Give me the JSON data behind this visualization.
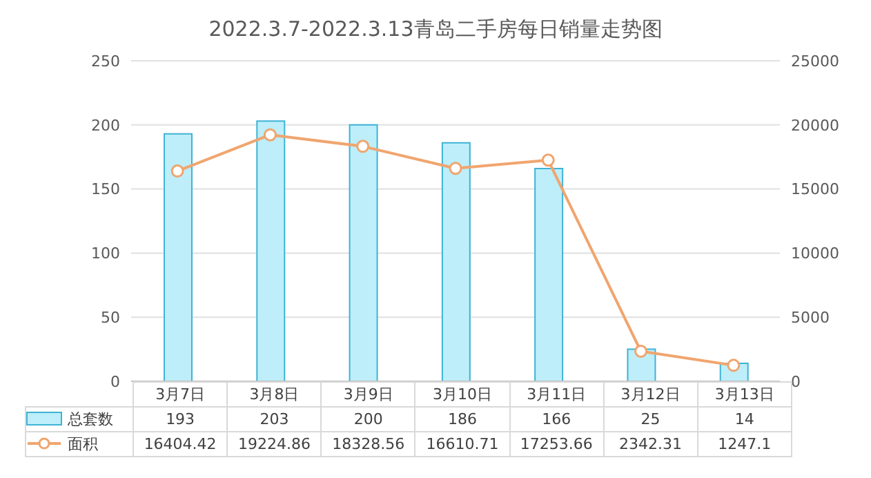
{
  "chart_data": {
    "type": "bar",
    "title": "2022.3.7-2022.3.13青岛二手房每日销量走势图",
    "categories": [
      "3月7日",
      "3月8日",
      "3月9日",
      "3月10日",
      "3月11日",
      "3月12日",
      "3月13日"
    ],
    "series": [
      {
        "name": "总套数",
        "color": "#bdeefa",
        "values": [
          193,
          203,
          200,
          186,
          166,
          25,
          14
        ]
      },
      {
        "name": "面积",
        "type": "line",
        "axis": "y2",
        "color": "#f0a56e",
        "values": [
          16404.42,
          19224.86,
          18328.56,
          16610.71,
          17253.66,
          2342.31,
          1247.1
        ]
      }
    ],
    "ylim": [
      0,
      250
    ],
    "yticks": [
      0,
      50,
      100,
      150,
      200,
      250
    ],
    "y2lim": [
      0,
      25000
    ],
    "y2ticks": [
      0,
      5000,
      10000,
      15000,
      20000,
      25000
    ],
    "grid": "y",
    "legend": "bottom",
    "data_labels": true,
    "marker": "circle",
    "line_style": "solid"
  }
}
